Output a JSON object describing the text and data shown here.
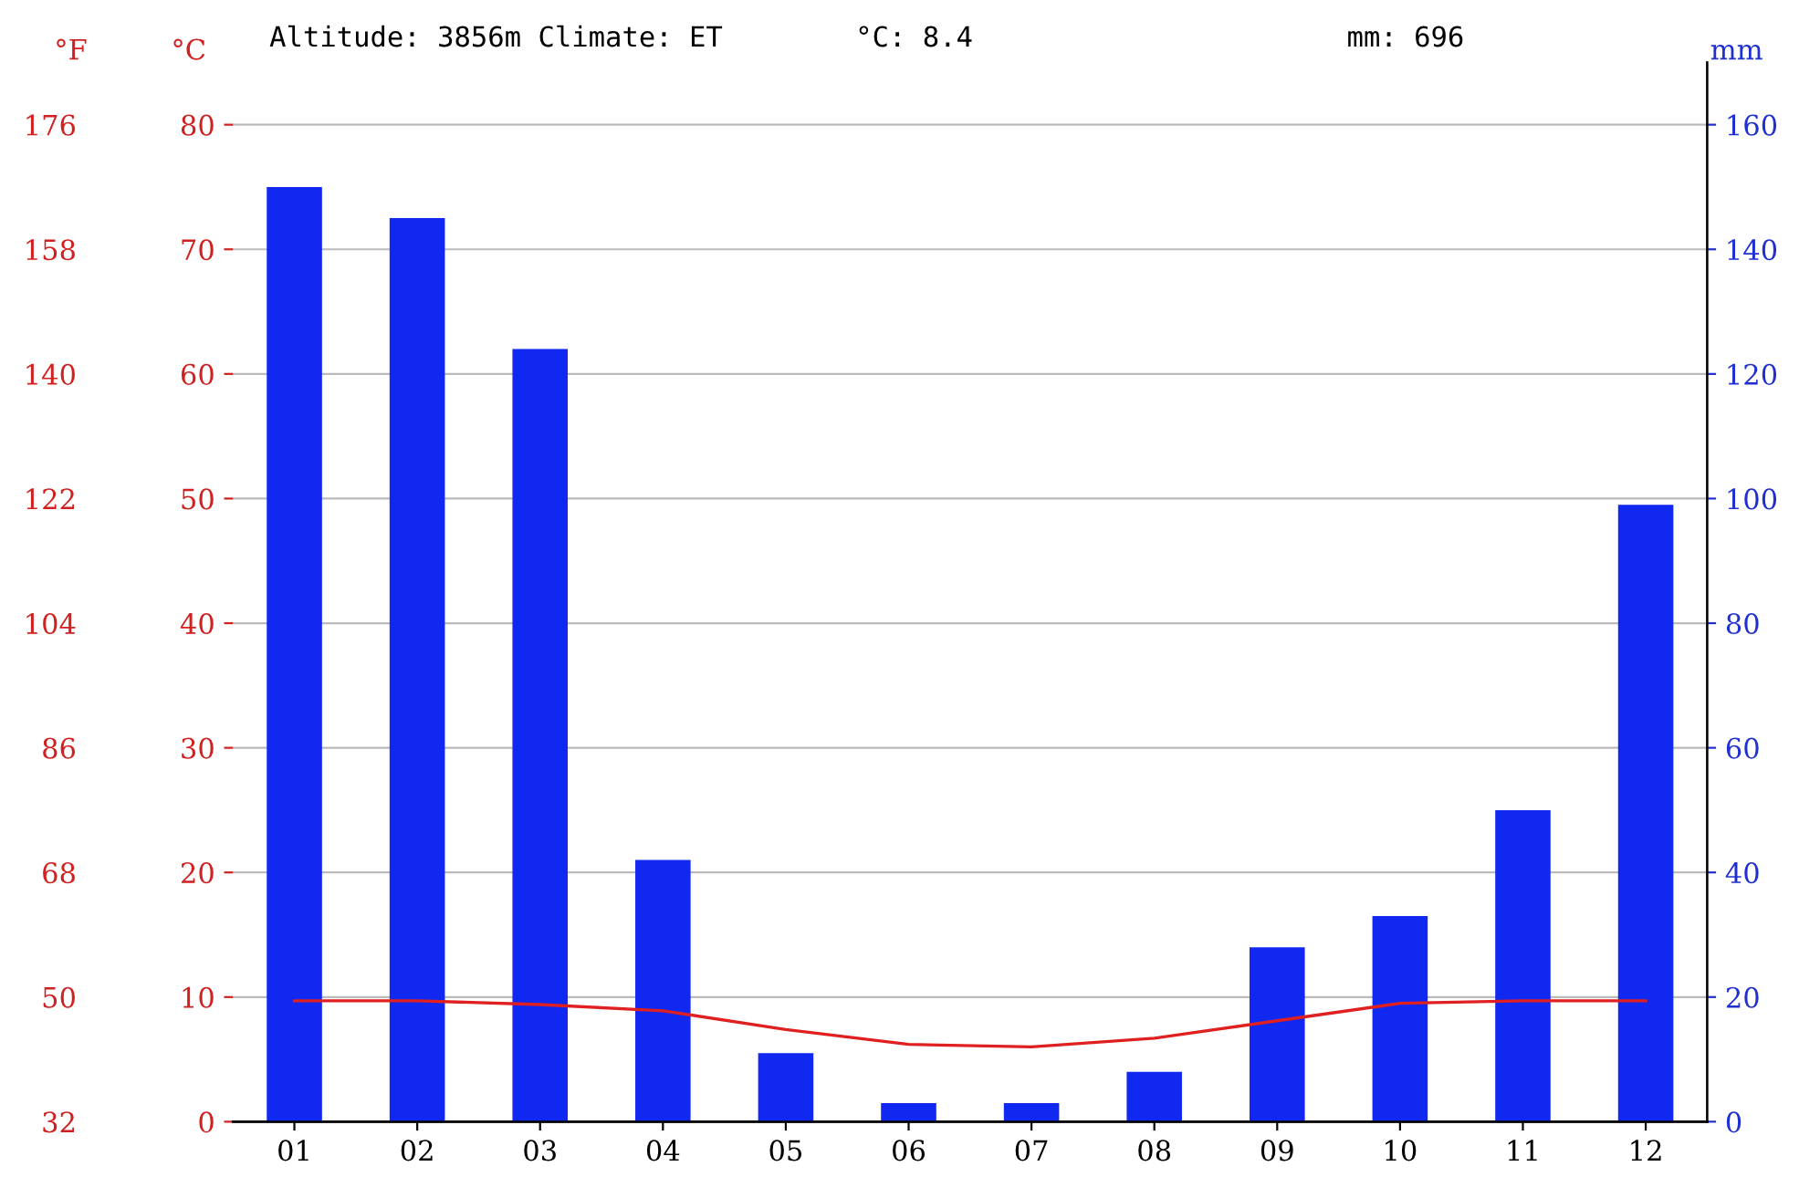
{
  "chart_data": {
    "type": "bar",
    "title": "Altitude: 3856m Climate: ET",
    "annotations": [
      "°C: 8.4",
      "mm: 696"
    ],
    "categories": [
      "01",
      "02",
      "03",
      "04",
      "05",
      "06",
      "07",
      "08",
      "09",
      "10",
      "11",
      "12"
    ],
    "series": [
      {
        "axis": "y2",
        "color": "#1028f0",
        "values": [
          150,
          145,
          124,
          42,
          11,
          3,
          3,
          8,
          28,
          33,
          50,
          99
        ]
      },
      {
        "type": "line",
        "axis": "y",
        "color": "#e02020",
        "values": [
          9.7,
          9.7,
          9.4,
          8.9,
          7.4,
          6.2,
          6.0,
          6.7,
          8.1,
          9.5,
          9.7,
          9.7
        ]
      }
    ],
    "ylabel": "°C",
    "y2label": "mm",
    "y3label": "°F",
    "ylim": [
      0,
      85
    ],
    "yticks": [
      0,
      10,
      20,
      30,
      40,
      50,
      60,
      70,
      80
    ],
    "y2lim": [
      0,
      170
    ],
    "y2ticks": [
      0,
      20,
      40,
      60,
      80,
      100,
      120,
      140,
      160
    ],
    "y3lim": [
      32,
      185
    ],
    "y3ticks": [
      32,
      50,
      68,
      86,
      104,
      122,
      140,
      158,
      176
    ],
    "grid": "y",
    "line_style": "solid",
    "marker": "none"
  }
}
